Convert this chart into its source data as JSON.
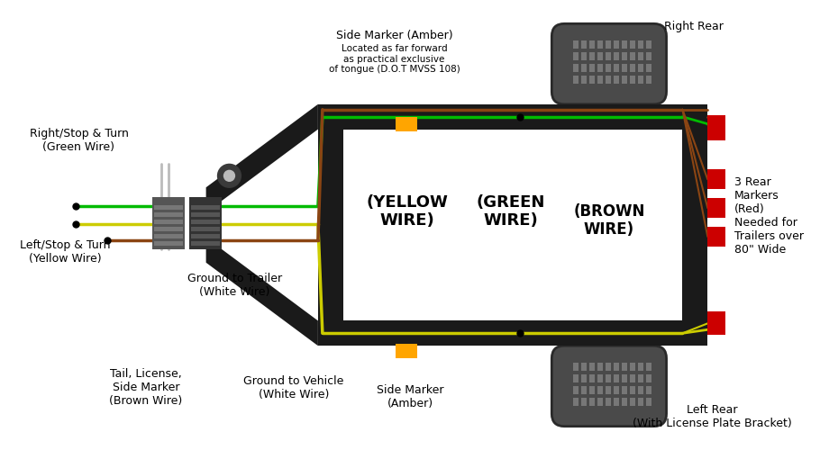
{
  "bg_color": "#ffffff",
  "frame_color": "#1a1a1a",
  "wire_colors": {
    "green": "#00bb00",
    "yellow": "#cccc00",
    "brown": "#8B4513",
    "white": "#bbbbbb",
    "red": "#cc0000",
    "amber": "#FFA500"
  },
  "labels": {
    "right_stop_turn": "Right/Stop & Turn\n(Green Wire)",
    "left_stop_turn": "Left/Stop & Turn\n(Yellow Wire)",
    "tail_license": "Tail, License,\nSide Marker\n(Brown Wire)",
    "ground_trailer": "Ground to Trailer\n(White Wire)",
    "ground_vehicle": "Ground to Vehicle\n(White Wire)",
    "side_marker_top": "Side Marker (Amber)",
    "side_marker_top_sub": "Located as far forward\nas practical exclusive\nof tongue (D.O.T MVSS 108)",
    "side_marker_bottom": "Side Marker\n(Amber)",
    "right_rear": "Right Rear",
    "left_rear": "Left Rear\n(With License Plate Bracket)",
    "green_wire": "(GREEN\nWIRE)",
    "yellow_wire": "(YELLOW\nWIRE)",
    "brown_wire": "(BROWN\nWIRE)",
    "markers_label": "3 Rear\nMarkers\n(Red)\nNeeded for\nTrailers over\n80\" Wide"
  }
}
